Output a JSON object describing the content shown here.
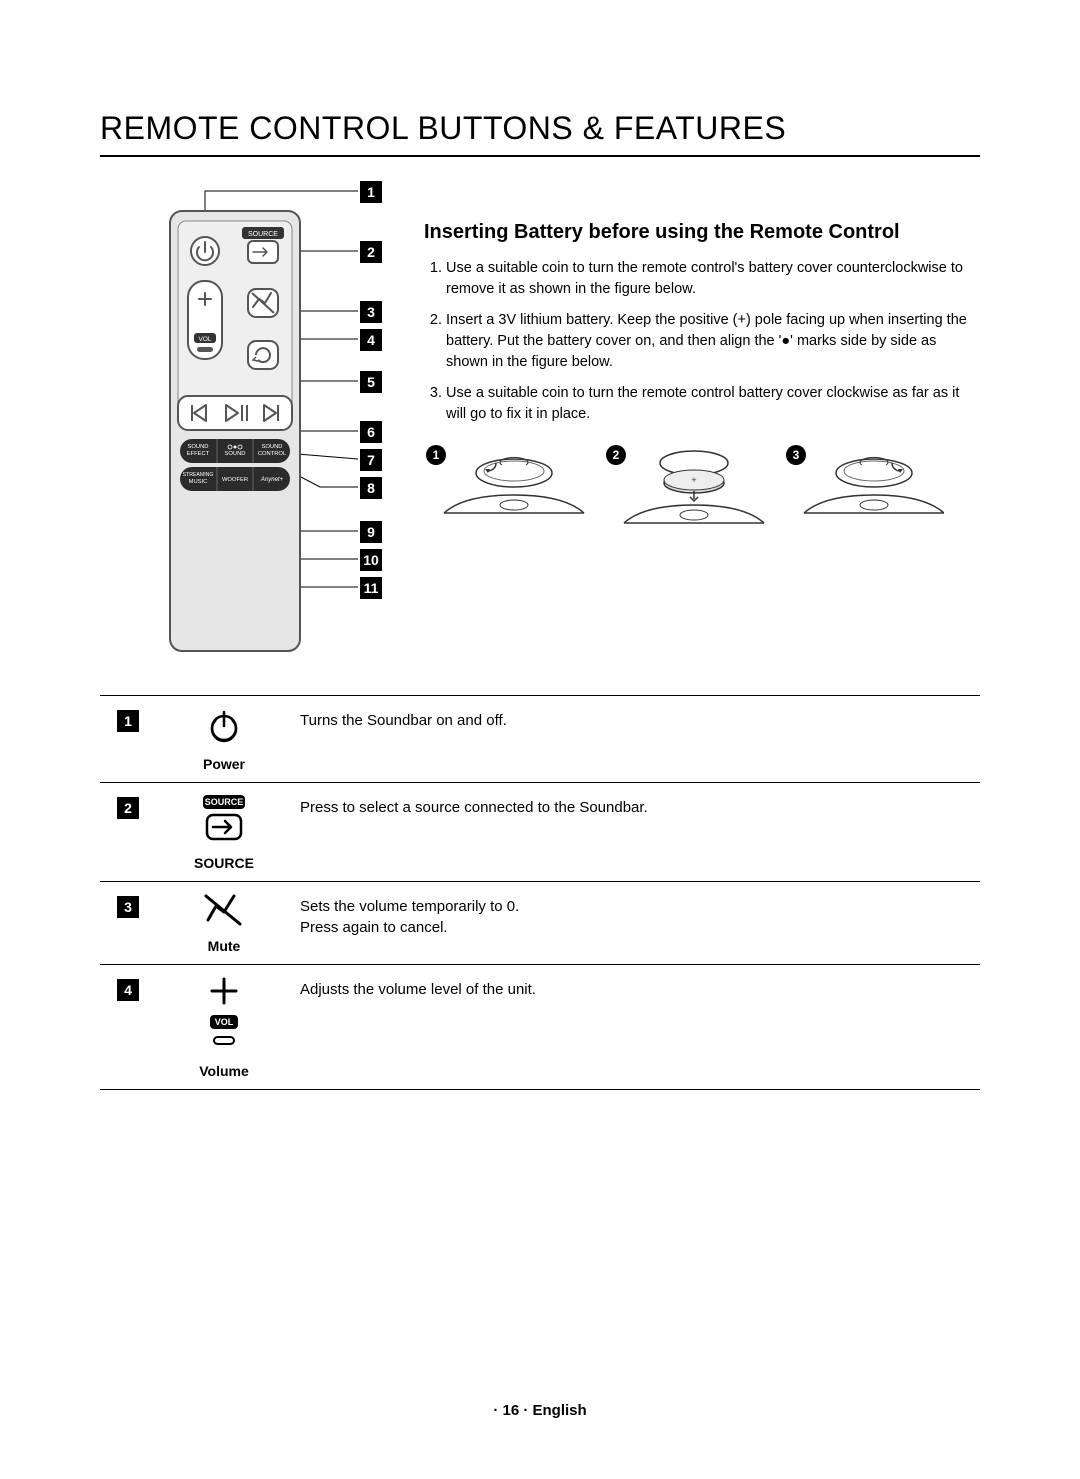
{
  "title": "REMOTE CONTROL BUTTONS & FEATURES",
  "subhead": "Inserting Battery before using the Remote Control",
  "steps": [
    "Use a suitable coin to turn the remote control's battery cover counterclockwise to remove it as shown in the figure below.",
    "Insert a 3V lithium battery. Keep the positive (+) pole facing up when inserting the battery. Put the battery cover on, and then align the '●' marks side by side as shown in the figure below.",
    "Use a suitable coin to turn the remote control battery cover clockwise as far as it will go to fix it in place."
  ],
  "callouts": [
    "1",
    "2",
    "3",
    "4",
    "5",
    "6",
    "7",
    "8",
    "9",
    "10",
    "11"
  ],
  "callout_positions_y": [
    0,
    60,
    120,
    148,
    190,
    240,
    268,
    296,
    340,
    368,
    396
  ],
  "battery_steps": [
    "1",
    "2",
    "3"
  ],
  "features": [
    {
      "num": "1",
      "label": "Power",
      "desc": "Turns the Soundbar on and off.",
      "icon": "power"
    },
    {
      "num": "2",
      "label": "SOURCE",
      "desc": "Press to select a source connected to the Soundbar.",
      "icon": "source"
    },
    {
      "num": "3",
      "label": "Mute",
      "desc": "Sets the volume temporarily to 0.\nPress again to cancel.",
      "icon": "mute"
    },
    {
      "num": "4",
      "label": "Volume",
      "desc": "Adjusts the volume level of the unit.",
      "icon": "volume"
    }
  ],
  "footer": "· 16 · English",
  "remote_labels": {
    "source": "SOURCE",
    "vol": "VOL",
    "sound_effect": "SOUND\nEFFECT",
    "surround_sound": "SOUND",
    "sound_control": "SOUND\nCONTROL",
    "streaming_music": "STREAMING\nMUSIC",
    "woofer": "WOOFER",
    "anynet": "Anynet+"
  },
  "colors": {
    "text": "#000000",
    "bg": "#ffffff",
    "remote_fill": "#e6e6e6",
    "remote_stroke": "#555555"
  }
}
